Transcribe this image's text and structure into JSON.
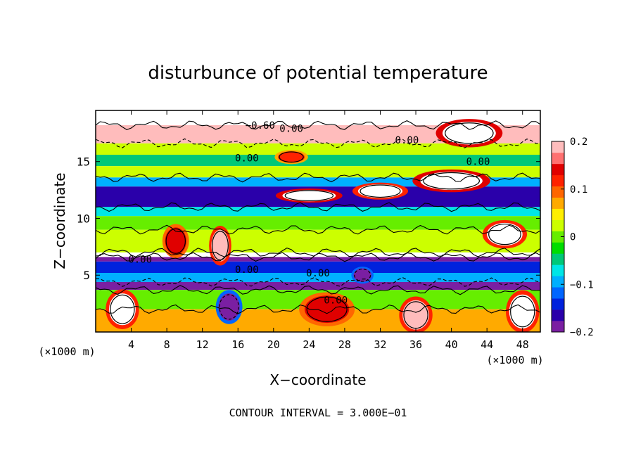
{
  "chart_data": {
    "type": "heatmap",
    "title": "disturbunce of potential temperature",
    "xlabel": "X−coordinate",
    "ylabel": "Z−coordinate",
    "x_unit_left": "(×1000 m)",
    "x_unit_right": "(×1000 m)",
    "x_ticks": [
      4,
      8,
      12,
      16,
      20,
      24,
      28,
      32,
      36,
      40,
      44,
      48
    ],
    "y_ticks": [
      5,
      10,
      15
    ],
    "xlim": [
      0,
      50
    ],
    "ylim": [
      0,
      19.5
    ],
    "colorbar": {
      "ticks": [
        "0.2",
        "0.1",
        "0",
        "−0.1",
        "−0.2"
      ],
      "tick_values": [
        0.2,
        0.1,
        0,
        -0.1,
        -0.2
      ],
      "range": [
        -0.2,
        0.2
      ],
      "colors": [
        "#7a1fa2",
        "#2a00aa",
        "#0022dd",
        "#0066ff",
        "#00b0ff",
        "#00e6e6",
        "#00c878",
        "#00dd00",
        "#66ee00",
        "#ccff00",
        "#ffee00",
        "#ffaa00",
        "#ff6600",
        "#ff2200",
        "#e00000",
        "#ff7070",
        "#ffbcbc"
      ]
    },
    "contour_labels": [
      "−0.60",
      "0.00",
      "0.00",
      "0.00",
      "0.00",
      "0.00",
      "0.00",
      "0.00",
      "0.00"
    ],
    "footer": "CONTOUR INTERVAL = 3.000E−01",
    "bands": [
      {
        "z0": 18.2,
        "z1": 19.5,
        "value": 0.25
      },
      {
        "z0": 16.6,
        "z1": 18.2,
        "value": 0.18
      },
      {
        "z0": 15.6,
        "z1": 16.6,
        "value": 0.03
      },
      {
        "z0": 14.6,
        "z1": 15.6,
        "value": -0.04
      },
      {
        "z0": 13.6,
        "z1": 14.6,
        "value": 0.02
      },
      {
        "z0": 12.8,
        "z1": 13.6,
        "value": -0.09
      },
      {
        "z0": 11.0,
        "z1": 12.8,
        "value": -0.17
      },
      {
        "z0": 10.2,
        "z1": 11.0,
        "value": -0.08
      },
      {
        "z0": 9.0,
        "z1": 10.2,
        "value": 0.0
      },
      {
        "z0": 7.0,
        "z1": 9.0,
        "value": 0.02
      },
      {
        "z0": 6.6,
        "z1": 7.0,
        "value": 0.25
      },
      {
        "z0": 6.2,
        "z1": 6.6,
        "value": -0.2
      },
      {
        "z0": 5.2,
        "z1": 6.2,
        "value": -0.15
      },
      {
        "z0": 4.4,
        "z1": 5.2,
        "value": -0.09
      },
      {
        "z0": 3.7,
        "z1": 4.4,
        "value": -0.18
      },
      {
        "z0": 2.0,
        "z1": 3.7,
        "value": 0.0
      },
      {
        "z0": 0.0,
        "z1": 2.0,
        "value": 0.07
      }
    ],
    "blobs": [
      {
        "x": 24,
        "z": 12.0,
        "rx": 3.0,
        "rz": 0.5,
        "value": 0.25
      },
      {
        "x": 32,
        "z": 12.4,
        "rx": 2.5,
        "rz": 0.6,
        "value": 0.2
      },
      {
        "x": 40,
        "z": 13.3,
        "rx": 3.5,
        "rz": 0.8,
        "value": 0.25
      },
      {
        "x": 9,
        "z": 8.0,
        "rx": 1.2,
        "rz": 1.2,
        "value": 0.15
      },
      {
        "x": 14,
        "z": 7.6,
        "rx": 1.0,
        "rz": 1.4,
        "value": 0.18
      },
      {
        "x": 46,
        "z": 8.6,
        "rx": 2.0,
        "rz": 1.0,
        "value": 0.2
      },
      {
        "x": 3,
        "z": 2.0,
        "rx": 1.5,
        "rz": 1.4,
        "value": 0.2
      },
      {
        "x": 26,
        "z": 2.0,
        "rx": 2.5,
        "rz": 1.2,
        "value": 0.15
      },
      {
        "x": 36,
        "z": 1.5,
        "rx": 1.5,
        "rz": 1.3,
        "value": 0.18
      },
      {
        "x": 48,
        "z": 1.8,
        "rx": 1.5,
        "rz": 1.5,
        "value": 0.2
      },
      {
        "x": 15,
        "z": 2.2,
        "rx": 1.2,
        "rz": 1.2,
        "value": -0.18
      },
      {
        "x": 30,
        "z": 5.0,
        "rx": 1.0,
        "rz": 0.6,
        "value": -0.2
      },
      {
        "x": 42,
        "z": 17.5,
        "rx": 3.0,
        "rz": 1.0,
        "value": 0.25
      },
      {
        "x": 22,
        "z": 15.4,
        "rx": 1.5,
        "rz": 0.5,
        "value": 0.12
      }
    ]
  }
}
